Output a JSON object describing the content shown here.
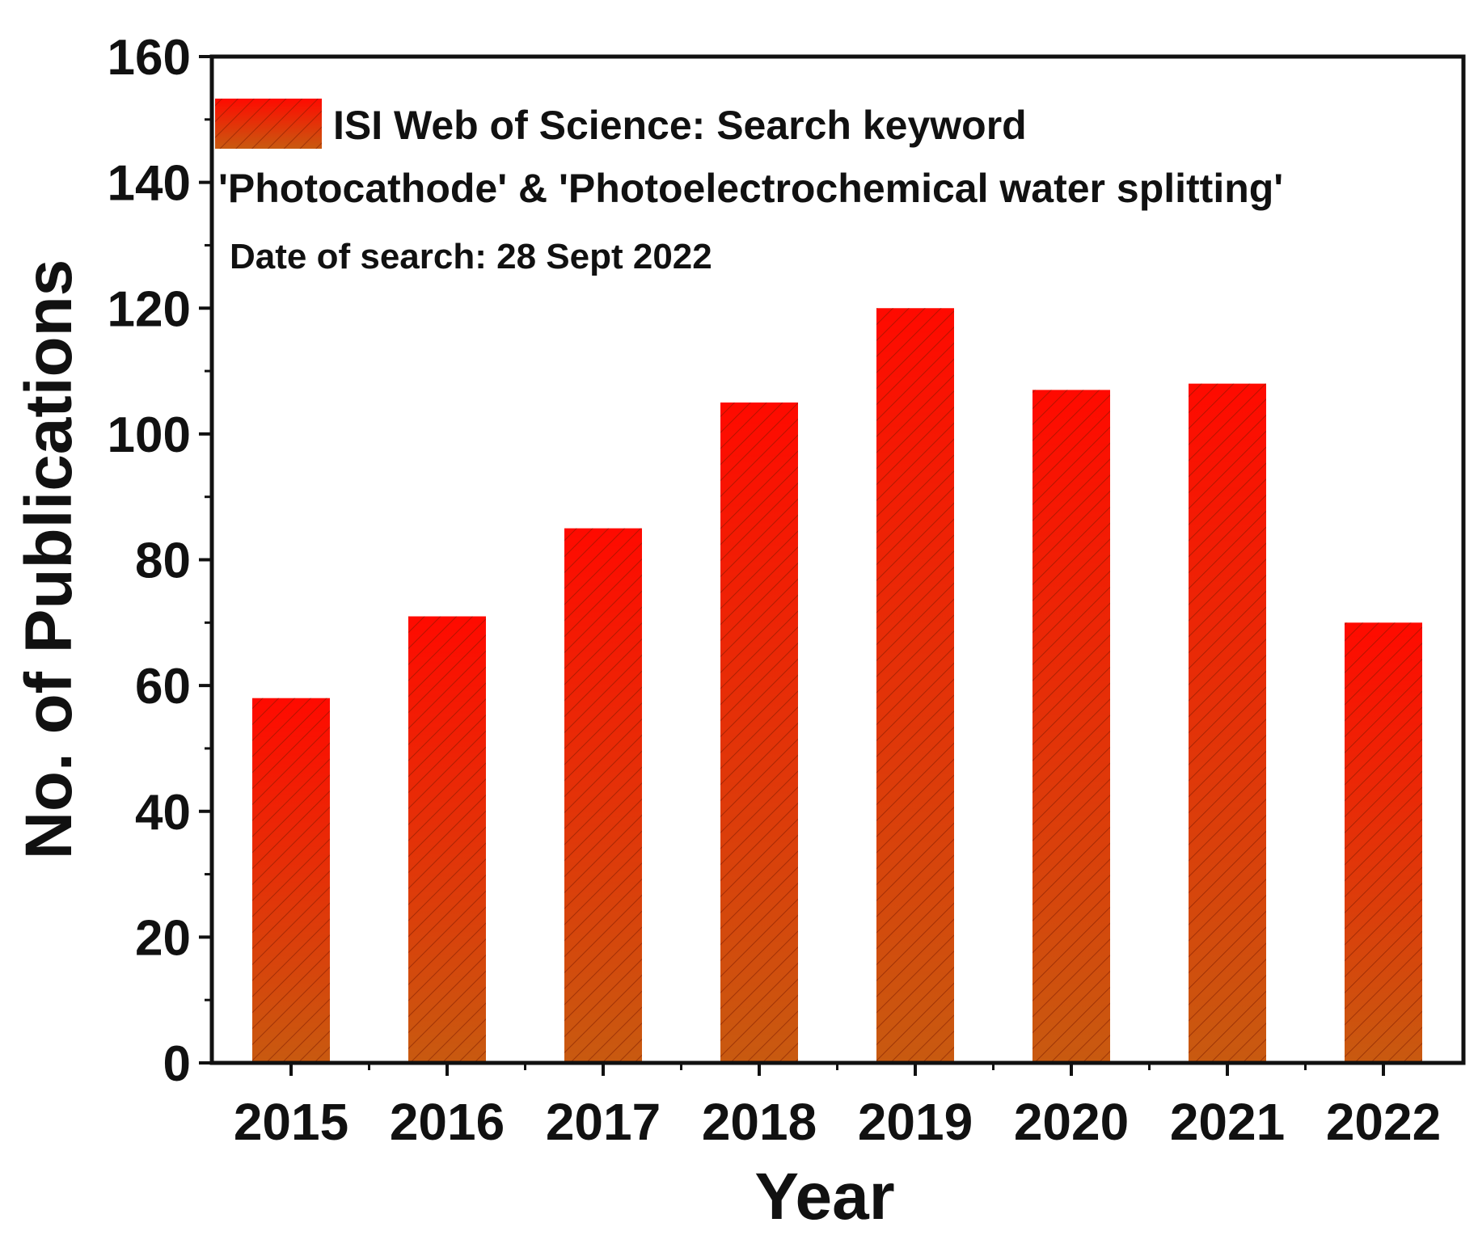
{
  "chart_data": {
    "type": "bar",
    "categories": [
      "2015",
      "2016",
      "2017",
      "2018",
      "2019",
      "2020",
      "2021",
      "2022"
    ],
    "values": [
      58,
      71,
      85,
      105,
      120,
      107,
      108,
      70
    ],
    "xlabel": "Year",
    "ylabel": "No. of Publications",
    "ylim": [
      0,
      160
    ],
    "yticks": [
      "0",
      "20",
      "40",
      "60",
      "80",
      "100",
      "120",
      "140",
      "160"
    ],
    "grid": false,
    "legend": {
      "position": "top-left",
      "line1": "ISI Web of Science: Search keyword",
      "line2": "'Photocathode' & 'Photoelectrochemical water splitting'",
      "line3": "Date of search: 28 Sept 2022"
    },
    "colors": {
      "bar_top": "#ff0a00",
      "bar_bottom": "#c85a10",
      "hatch": "#7a1a00",
      "axis": "#111111"
    }
  }
}
